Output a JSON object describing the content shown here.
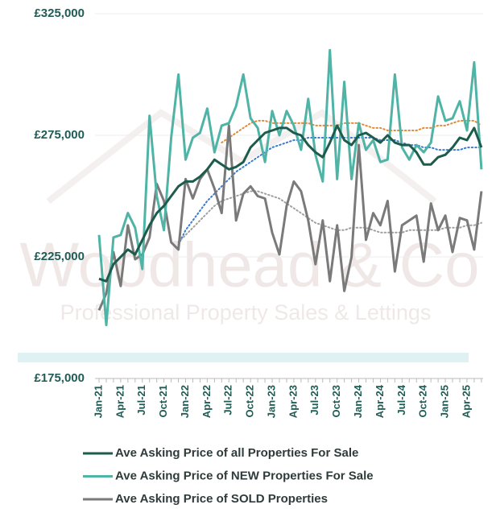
{
  "chart_data": {
    "type": "line",
    "watermark": [
      "Woodhead & Co",
      "Professional Property Sales & Lettings"
    ],
    "categories": [
      "Jan-21",
      null,
      null,
      "Apr-21",
      null,
      null,
      "Jul-21",
      null,
      null,
      "Oct-21",
      null,
      null,
      "Jan-22",
      null,
      null,
      "Apr-22",
      null,
      null,
      "Jul-22",
      null,
      null,
      "Oct-22",
      null,
      null,
      "Jan-23",
      null,
      null,
      "Apr-23",
      null,
      null,
      "Jul-23",
      null,
      null,
      "Oct-23",
      null,
      null,
      "Jan-24",
      null,
      null,
      "Apr-24",
      null,
      null,
      "Jul-24",
      null,
      null,
      "Oct-24",
      null,
      null,
      "Jan-25",
      null,
      null,
      "Apr-25",
      null,
      null
    ],
    "series": [
      {
        "name": "Ave Asking Price of all Properties For Sale",
        "color": "#1d5c4d",
        "values": [
          216000,
          215000,
          222000,
          225000,
          228000,
          226000,
          232000,
          238000,
          243000,
          246000,
          250000,
          254000,
          256000,
          256000,
          258000,
          261000,
          265000,
          263000,
          261000,
          262000,
          264000,
          270000,
          273000,
          276000,
          277000,
          278000,
          278000,
          276000,
          275000,
          271000,
          268000,
          266000,
          272000,
          279000,
          273000,
          271000,
          275000,
          276000,
          274000,
          272000,
          275000,
          272000,
          271000,
          271000,
          268000,
          263000,
          263000,
          266000,
          267000,
          270000,
          274000,
          273000,
          278000,
          270000
        ]
      },
      {
        "name": "Ave Asking Price of NEW Properties For Sale",
        "color": "#4fb3a6",
        "values": [
          234000,
          197000,
          233000,
          234000,
          243000,
          237000,
          220000,
          283000,
          250000,
          236000,
          274000,
          300000,
          265000,
          274000,
          276000,
          286000,
          268000,
          279000,
          280000,
          287000,
          300000,
          282000,
          278000,
          264000,
          285000,
          275000,
          285000,
          279000,
          269000,
          290000,
          267000,
          256000,
          310000,
          257000,
          297000,
          257000,
          280000,
          269000,
          273000,
          264000,
          265000,
          300000,
          270000,
          265000,
          271000,
          268000,
          272000,
          291000,
          281000,
          282000,
          289000,
          277000,
          305000,
          261000
        ]
      },
      {
        "name": "Ave Asking Price of SOLD Properties",
        "color": "#7a7a7a",
        "values": [
          203000,
          210000,
          227000,
          213000,
          238000,
          224000,
          226000,
          233000,
          255000,
          248000,
          231000,
          228000,
          257000,
          249000,
          257000,
          261000,
          253000,
          243000,
          279000,
          240000,
          251000,
          254000,
          250000,
          249000,
          235000,
          226000,
          246000,
          256000,
          252000,
          240000,
          222000,
          240000,
          215000,
          238000,
          211000,
          225000,
          271000,
          232000,
          243000,
          238000,
          248000,
          219000,
          238000,
          240000,
          242000,
          223000,
          247000,
          236000,
          242000,
          227000,
          241000,
          240000,
          228000,
          252000
        ]
      }
    ],
    "trendlines": [
      {
        "color": "#e08a3c",
        "values": [
          null,
          null,
          null,
          null,
          null,
          null,
          null,
          null,
          null,
          null,
          null,
          null,
          null,
          null,
          null,
          null,
          null,
          272000,
          274000,
          276000,
          278000,
          280000,
          281000,
          281000,
          280000,
          280000,
          280000,
          280000,
          280000,
          280000,
          279000,
          279000,
          279000,
          279000,
          280000,
          280000,
          280000,
          279000,
          278000,
          278000,
          277000,
          277000,
          277000,
          277000,
          277000,
          278000,
          278000,
          279000,
          279000,
          280000,
          281000,
          281000,
          281000,
          279000
        ]
      },
      {
        "color": "#3a7bd5",
        "values": [
          null,
          null,
          null,
          null,
          null,
          null,
          null,
          null,
          null,
          null,
          null,
          230000,
          236000,
          240000,
          244000,
          248000,
          251000,
          254000,
          257000,
          260000,
          262000,
          264000,
          266000,
          268000,
          270000,
          271000,
          272000,
          273000,
          273000,
          274000,
          274000,
          274000,
          274000,
          274000,
          274000,
          274000,
          274000,
          274000,
          274000,
          273000,
          273000,
          273000,
          272000,
          271000,
          271000,
          270000,
          270000,
          269000,
          269000,
          269000,
          269000,
          270000,
          270000,
          270000
        ]
      },
      {
        "color": "#a0a0a0",
        "values": [
          null,
          null,
          null,
          null,
          null,
          null,
          null,
          null,
          null,
          null,
          null,
          231000,
          234000,
          237000,
          240000,
          243000,
          246000,
          248000,
          249000,
          250000,
          251000,
          252000,
          252000,
          251000,
          250000,
          249000,
          247000,
          245000,
          243000,
          241000,
          239000,
          238000,
          237000,
          236000,
          236000,
          237000,
          237000,
          237000,
          236000,
          235000,
          235000,
          235000,
          235000,
          236000,
          236000,
          236000,
          236000,
          236000,
          237000,
          237000,
          237000,
          238000,
          238000,
          239000
        ]
      }
    ],
    "ylim": [
      175000,
      325000
    ],
    "yticks": [
      {
        "value": 175000,
        "label": "£175,000"
      },
      {
        "value": 225000,
        "label": "£225,000"
      },
      {
        "value": 275000,
        "label": "£275,000"
      },
      {
        "value": 325000,
        "label": "£325,000"
      }
    ],
    "grid": true
  }
}
